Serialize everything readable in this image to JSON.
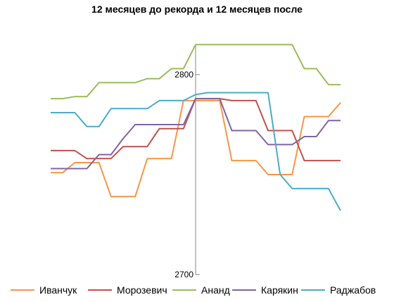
{
  "chart_data": {
    "type": "line",
    "title": "12 месяцев до рекорда и 12 месяцев после",
    "xlabel": "",
    "ylabel": "",
    "ylim": [
      2700,
      2815
    ],
    "yticks": [
      2700,
      2800
    ],
    "grid": false,
    "legend_position": "bottom",
    "x": [
      -12,
      -11,
      -10,
      -9,
      -8,
      -7,
      -6,
      -5,
      -4,
      -3,
      -2,
      -1,
      0,
      1,
      2,
      3,
      4,
      5,
      6,
      7,
      8,
      9,
      10,
      11,
      12
    ],
    "series": [
      {
        "name": "Иванчук",
        "color": "#F79646",
        "values": [
          2751,
          2751,
          2756,
          2756,
          2756,
          2739,
          2739,
          2739,
          2758,
          2758,
          2758,
          2787,
          2787,
          2787,
          2787,
          2757,
          2757,
          2757,
          2750,
          2750,
          2750,
          2779,
          2779,
          2779,
          2786
        ]
      },
      {
        "name": "Морозевич",
        "color": "#C0504D",
        "values": [
          2762,
          2762,
          2762,
          2758,
          2758,
          2758,
          2764,
          2764,
          2764,
          2773,
          2773,
          2773,
          2788,
          2788,
          2788,
          2787,
          2787,
          2787,
          2772,
          2772,
          2772,
          2757,
          2757,
          2757,
          2757
        ]
      },
      {
        "name": "Ананд",
        "color": "#9BBB59",
        "values": [
          2788,
          2788,
          2789,
          2789,
          2796,
          2796,
          2796,
          2796,
          2798,
          2798,
          2803,
          2803,
          2815,
          2815,
          2815,
          2815,
          2815,
          2815,
          2815,
          2815,
          2815,
          2803,
          2803,
          2795,
          2795
        ]
      },
      {
        "name": "Карякин",
        "color": "#8064A2",
        "values": [
          2753,
          2753,
          2753,
          2753,
          2760,
          2760,
          2768,
          2775,
          2775,
          2775,
          2775,
          2775,
          2788,
          2788,
          2788,
          2772,
          2772,
          2772,
          2765,
          2765,
          2765,
          2769,
          2769,
          2777,
          2777
        ]
      },
      {
        "name": "Раджабов",
        "color": "#4BACC6",
        "values": [
          2781,
          2781,
          2781,
          2774,
          2774,
          2783,
          2783,
          2783,
          2783,
          2787,
          2787,
          2787,
          2790,
          2791,
          2791,
          2791,
          2791,
          2791,
          2791,
          2750,
          2743,
          2743,
          2743,
          2743,
          2732
        ]
      }
    ]
  }
}
